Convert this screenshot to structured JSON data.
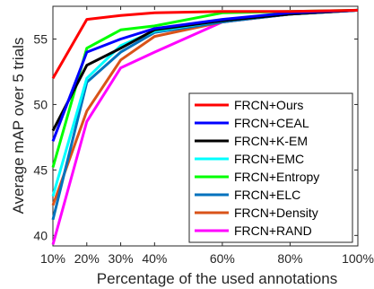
{
  "chart_data": {
    "type": "line",
    "title": "",
    "xlabel": "Percentage of the used annotations",
    "ylabel": "Average mAP over 5 trials",
    "x": [
      10,
      20,
      30,
      40,
      60,
      80,
      100
    ],
    "x_tick_labels": [
      "10%",
      "20%",
      "30%",
      "40%",
      "60%",
      "80%",
      "100%"
    ],
    "xlim": [
      10,
      100
    ],
    "ylim": [
      39.2,
      57.5
    ],
    "y_ticks": [
      40,
      45,
      50,
      55
    ],
    "y_tick_labels": [
      "40",
      "45",
      "50",
      "55"
    ],
    "grid": false,
    "legend_position": "bottom-right",
    "series": [
      {
        "name": "FRCN+Ours",
        "color": "#ff0000",
        "values": [
          52.0,
          56.5,
          56.8,
          57.0,
          57.1,
          57.1,
          57.2
        ]
      },
      {
        "name": "FRCN+CEAL",
        "color": "#0000ff",
        "values": [
          47.2,
          54.0,
          55.0,
          55.8,
          56.5,
          57.0,
          57.2
        ]
      },
      {
        "name": "FRCN+K-EM",
        "color": "#000000",
        "values": [
          48.0,
          53.0,
          54.3,
          55.7,
          56.4,
          56.9,
          57.2
        ]
      },
      {
        "name": "FRCN+EMC",
        "color": "#00ffff",
        "values": [
          43.0,
          52.0,
          54.5,
          55.6,
          56.4,
          56.9,
          57.2
        ]
      },
      {
        "name": "FRCN+Entropy",
        "color": "#00ff00",
        "values": [
          45.2,
          54.3,
          55.7,
          56.0,
          57.0,
          57.1,
          57.2
        ]
      },
      {
        "name": "FRCN+ELC",
        "color": "#0072bd",
        "values": [
          41.2,
          51.7,
          54.0,
          55.5,
          56.3,
          56.9,
          57.2
        ]
      },
      {
        "name": "FRCN+Density",
        "color": "#d95319",
        "values": [
          42.3,
          49.5,
          53.4,
          55.2,
          56.3,
          56.9,
          57.2
        ]
      },
      {
        "name": "FRCN+RAND",
        "color": "#ff00ff",
        "values": [
          39.3,
          48.7,
          52.8,
          54.0,
          56.3,
          56.9,
          57.2
        ]
      }
    ]
  }
}
